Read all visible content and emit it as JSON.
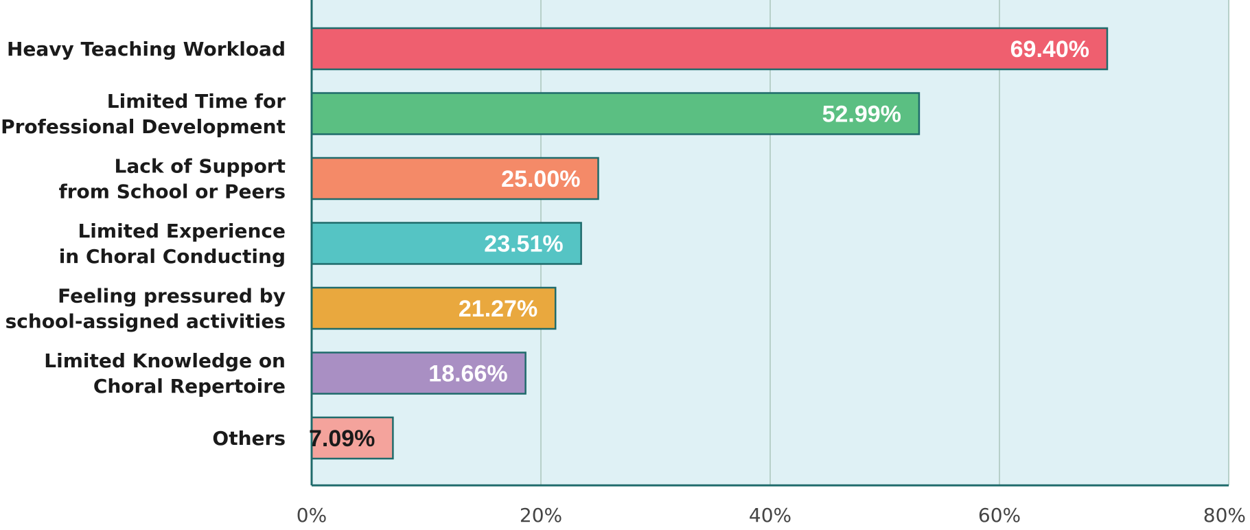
{
  "chart_data": {
    "type": "bar",
    "orientation": "horizontal",
    "categories": [
      [
        "Heavy Teaching Workload"
      ],
      [
        "Limited Time for",
        "Professional Development"
      ],
      [
        "Lack of Support",
        "from School or Peers"
      ],
      [
        "Limited Experience",
        "in Choral Conducting"
      ],
      [
        "Feeling pressured by",
        "school-assigned activities"
      ],
      [
        "Limited Knowledge on",
        "Choral Repertoire"
      ],
      [
        "Others"
      ]
    ],
    "values": [
      69.4,
      52.99,
      25.0,
      23.51,
      21.27,
      18.66,
      7.09
    ],
    "value_labels": [
      "69.40%",
      "52.99%",
      "25.00%",
      "23.51%",
      "21.27%",
      "18.66%",
      "7.09%"
    ],
    "colors": [
      "#ef5f6f",
      "#5bbf82",
      "#f48a68",
      "#55c4c4",
      "#e9a83e",
      "#a98fc3",
      "#f4a39c"
    ],
    "value_label_colors": [
      "#ffffff",
      "#ffffff",
      "#ffffff",
      "#ffffff",
      "#ffffff",
      "#ffffff",
      "#1a1a1a"
    ],
    "xlim": [
      0,
      80
    ],
    "xticks": [
      0,
      20,
      40,
      60,
      80
    ],
    "xtick_labels": [
      "0%",
      "20%",
      "40%",
      "60%",
      "80%"
    ],
    "grid": true,
    "plot_background": "#dff1f5",
    "gridline_color": "#b7d0c9",
    "axis_color": "#1f6b6b",
    "bar_border_color": "#1f6b6b",
    "title": "",
    "xlabel": "",
    "ylabel": ""
  }
}
